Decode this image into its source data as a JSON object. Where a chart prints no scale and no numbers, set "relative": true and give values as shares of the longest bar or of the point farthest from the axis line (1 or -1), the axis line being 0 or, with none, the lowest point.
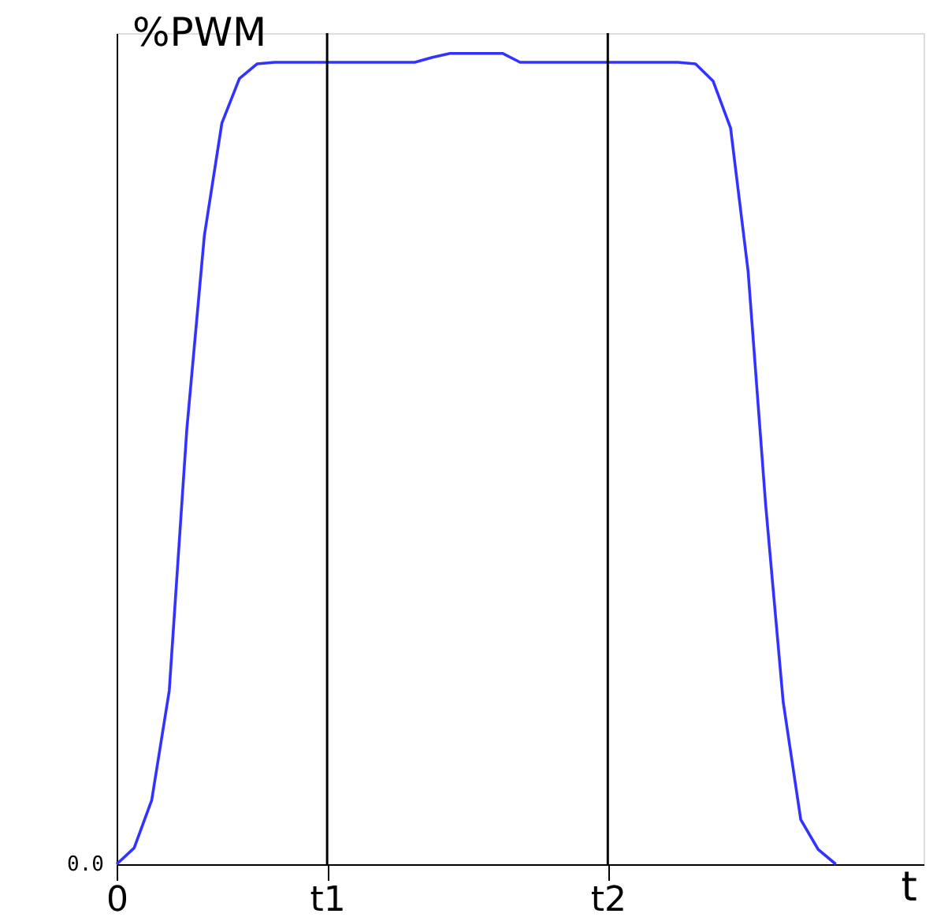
{
  "chart_data": {
    "type": "line",
    "relative": true,
    "ylabel": "%PWM",
    "xlabel": "t",
    "categories": [
      "0",
      null,
      null,
      null,
      null,
      null,
      null,
      null,
      null,
      null,
      null,
      null,
      "t1",
      null,
      null,
      null,
      null,
      null,
      null,
      null,
      null,
      null,
      null,
      null,
      null,
      null,
      null,
      null,
      "t2",
      null,
      null,
      null,
      null,
      null,
      null,
      null,
      null,
      null,
      null,
      null,
      null,
      null,
      null,
      null,
      null,
      null,
      null
    ],
    "series": [
      {
        "color": "#3333ff",
        "values": [
          0,
          0.02,
          0.079,
          0.214,
          0.536,
          0.775,
          0.914,
          0.969,
          0.987,
          0.989,
          0.989,
          0.989,
          0.989,
          0.989,
          0.989,
          0.989,
          0.989,
          0.989,
          0.995,
          1.0,
          1.0,
          1.0,
          1.0,
          0.989,
          0.989,
          0.989,
          0.989,
          0.989,
          0.989,
          0.989,
          0.989,
          0.989,
          0.989,
          0.987,
          0.966,
          0.908,
          0.731,
          0.443,
          0.2,
          0.055,
          0.018,
          0,
          null,
          null,
          null,
          null,
          null
        ]
      }
    ],
    "ref_lines": [
      {
        "axis": "x",
        "value": "t1",
        "color": "#000000"
      },
      {
        "axis": "x",
        "value": "t2",
        "color": "#000000"
      }
    ],
    "annotations": [
      "0.0"
    ],
    "line_style": "solid"
  }
}
